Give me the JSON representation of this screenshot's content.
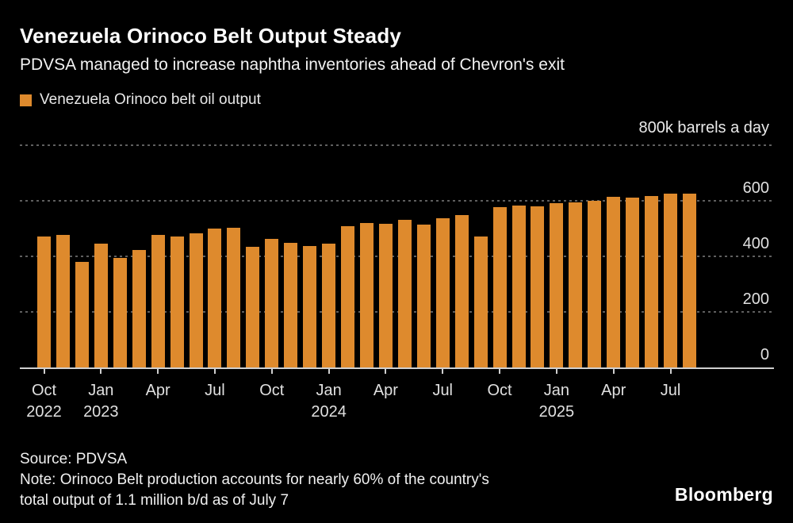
{
  "header": {
    "title": "Venezuela Orinoco Belt Output Steady",
    "subtitle": "PDVSA managed to increase naphtha inventories ahead of Chevron's exit"
  },
  "legend": {
    "label": "Venezuela Orinoco belt oil output"
  },
  "axis": {
    "unit_label": "800k barrels a day"
  },
  "footer": {
    "source": "Source: PDVSA",
    "note_line1": "Note: Orinoco Belt production accounts for nearly 60% of the country's",
    "note_line2": "total output of 1.1 million b/d as of July 7",
    "logo": "Bloomberg"
  },
  "colors": {
    "background": "#000000",
    "bar": "#DE8A2D",
    "gridline": "#5F5F5F",
    "axis_line": "#CFCFCF",
    "text": "#F2F2F2"
  },
  "chart_data": {
    "type": "bar",
    "title": "Venezuela Orinoco belt oil output",
    "xlabel": "",
    "ylabel": "800k barrels a day",
    "ylim": [
      0,
      800
    ],
    "yticks": [
      0,
      200,
      400,
      600
    ],
    "grid": "horizontal dotted",
    "legend_position": "top-left",
    "categories": [
      "Oct 2022",
      "Nov 2022",
      "Dec 2022",
      "Jan 2023",
      "Feb 2023",
      "Mar 2023",
      "Apr 2023",
      "May 2023",
      "Jun 2023",
      "Jul 2023",
      "Aug 2023",
      "Sep 2023",
      "Oct 2023",
      "Nov 2023",
      "Dec 2023",
      "Jan 2024",
      "Feb 2024",
      "Mar 2024",
      "Apr 2024",
      "May 2024",
      "Jun 2024",
      "Jul 2024",
      "Aug 2024",
      "Sep 2024",
      "Oct 2024",
      "Nov 2024",
      "Dec 2024",
      "Jan 2025",
      "Feb 2025",
      "Mar 2025",
      "Apr 2025",
      "May 2025",
      "Jun 2025",
      "Jul 2025",
      "Aug 2025"
    ],
    "values": [
      472,
      477,
      380,
      445,
      395,
      422,
      478,
      472,
      482,
      500,
      503,
      434,
      462,
      449,
      437,
      446,
      508,
      519,
      516,
      531,
      515,
      538,
      550,
      471,
      576,
      583,
      579,
      591,
      593,
      601,
      615,
      612,
      617,
      626,
      625
    ],
    "x_ticks": [
      {
        "index": 0,
        "month": "Oct",
        "year": "2022"
      },
      {
        "index": 3,
        "month": "Jan",
        "year": "2023"
      },
      {
        "index": 6,
        "month": "Apr",
        "year": ""
      },
      {
        "index": 9,
        "month": "Jul",
        "year": ""
      },
      {
        "index": 12,
        "month": "Oct",
        "year": ""
      },
      {
        "index": 15,
        "month": "Jan",
        "year": "2024"
      },
      {
        "index": 18,
        "month": "Apr",
        "year": ""
      },
      {
        "index": 21,
        "month": "Jul",
        "year": ""
      },
      {
        "index": 24,
        "month": "Oct",
        "year": ""
      },
      {
        "index": 27,
        "month": "Jan",
        "year": "2025"
      },
      {
        "index": 30,
        "month": "Apr",
        "year": ""
      },
      {
        "index": 33,
        "month": "Jul",
        "year": ""
      }
    ]
  }
}
